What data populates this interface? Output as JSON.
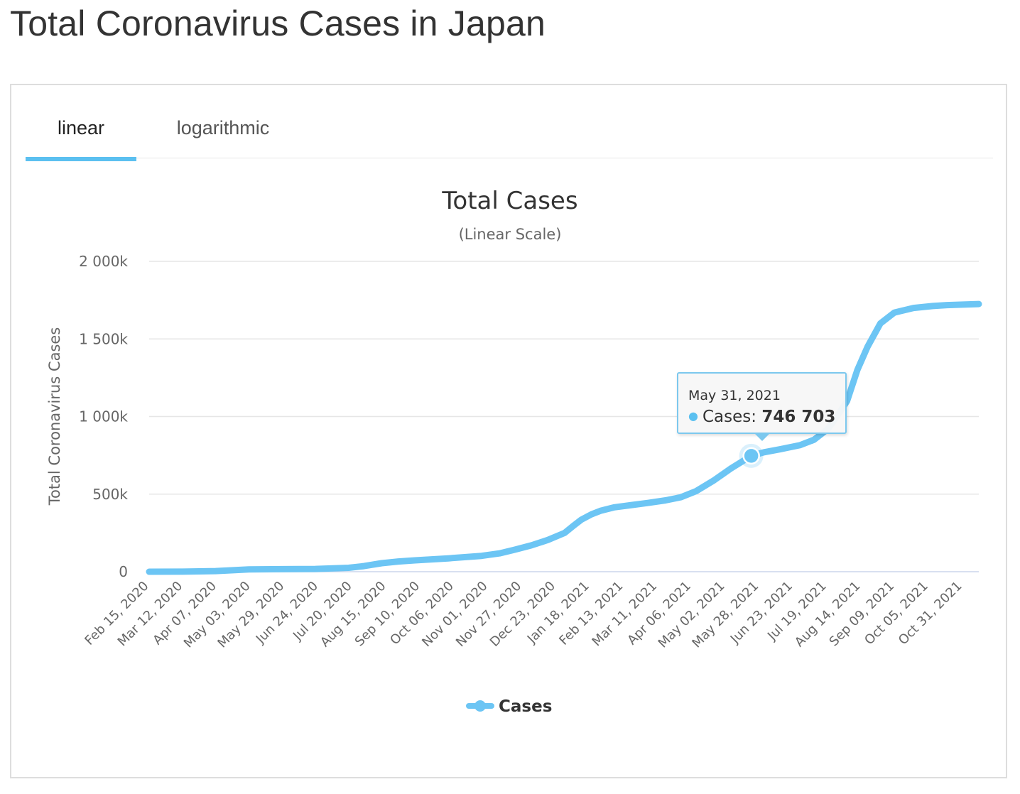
{
  "page": {
    "title": "Total Coronavirus Cases in Japan"
  },
  "tabs": [
    {
      "label": "linear",
      "active": true
    },
    {
      "label": "logarithmic",
      "active": false
    }
  ],
  "colors": {
    "series": "#6cc5f4",
    "accent": "#5bc0f0",
    "grid": "#e6e6e6"
  },
  "tooltip": {
    "date": "May 31, 2021",
    "series_label": "Cases",
    "separator": ":",
    "value": "746 703"
  },
  "chart_data": {
    "type": "line",
    "title": "Total Cases",
    "subtitle": "(Linear Scale)",
    "ylabel": "Total Coronavirus Cases",
    "ylim": [
      0,
      2000000
    ],
    "y_tick_labels": [
      "0",
      "500k",
      "1 000k",
      "1 500k",
      "2 000k"
    ],
    "y_tick_values": [
      0,
      500000,
      1000000,
      1500000,
      2000000
    ],
    "x_start": "2020-02-15",
    "x_end": "2021-11-25",
    "x_tick_labels": [
      "Feb 15, 2020",
      "Mar 12, 2020",
      "Apr 07, 2020",
      "May 03, 2020",
      "May 29, 2020",
      "Jun 24, 2020",
      "Jul 20, 2020",
      "Aug 15, 2020",
      "Sep 10, 2020",
      "Oct 06, 2020",
      "Nov 01, 2020",
      "Nov 27, 2020",
      "Dec 23, 2020",
      "Jan 18, 2021",
      "Feb 13, 2021",
      "Mar 11, 2021",
      "Apr 06, 2021",
      "May 02, 2021",
      "May 28, 2021",
      "Jun 23, 2021",
      "Jul 19, 2021",
      "Aug 14, 2021",
      "Sep 09, 2021",
      "Oct 05, 2021",
      "Oct 31, 2021"
    ],
    "grid": true,
    "legend_position": "bottom-center",
    "highlight": {
      "x": "2021-05-31",
      "y": 746703
    },
    "series": [
      {
        "name": "Cases",
        "color": "#6cc5f4",
        "points": [
          [
            "2020-02-15",
            0
          ],
          [
            "2020-03-12",
            600
          ],
          [
            "2020-04-07",
            4000
          ],
          [
            "2020-05-03",
            14500
          ],
          [
            "2020-05-29",
            16600
          ],
          [
            "2020-06-24",
            17700
          ],
          [
            "2020-07-20",
            25000
          ],
          [
            "2020-08-01",
            36000
          ],
          [
            "2020-08-15",
            55000
          ],
          [
            "2020-08-28",
            66000
          ],
          [
            "2020-09-10",
            73000
          ],
          [
            "2020-10-06",
            86000
          ],
          [
            "2020-11-01",
            102000
          ],
          [
            "2020-11-15",
            118000
          ],
          [
            "2020-11-27",
            142000
          ],
          [
            "2020-12-10",
            170000
          ],
          [
            "2020-12-23",
            205000
          ],
          [
            "2021-01-05",
            250000
          ],
          [
            "2021-01-11",
            290000
          ],
          [
            "2021-01-18",
            335000
          ],
          [
            "2021-01-26",
            370000
          ],
          [
            "2021-02-02",
            392000
          ],
          [
            "2021-02-13",
            415000
          ],
          [
            "2021-02-27",
            430000
          ],
          [
            "2021-03-11",
            443000
          ],
          [
            "2021-03-25",
            460000
          ],
          [
            "2021-04-06",
            480000
          ],
          [
            "2021-04-18",
            520000
          ],
          [
            "2021-05-02",
            590000
          ],
          [
            "2021-05-15",
            665000
          ],
          [
            "2021-05-31",
            746703
          ],
          [
            "2021-06-10",
            770000
          ],
          [
            "2021-06-23",
            790000
          ],
          [
            "2021-07-08",
            815000
          ],
          [
            "2021-07-19",
            850000
          ],
          [
            "2021-07-30",
            920000
          ],
          [
            "2021-08-06",
            1000000
          ],
          [
            "2021-08-14",
            1100000
          ],
          [
            "2021-08-22",
            1300000
          ],
          [
            "2021-08-30",
            1450000
          ],
          [
            "2021-09-09",
            1600000
          ],
          [
            "2021-09-20",
            1670000
          ],
          [
            "2021-10-05",
            1700000
          ],
          [
            "2021-10-20",
            1712000
          ],
          [
            "2021-10-31",
            1718000
          ],
          [
            "2021-11-25",
            1725000
          ]
        ]
      }
    ]
  }
}
